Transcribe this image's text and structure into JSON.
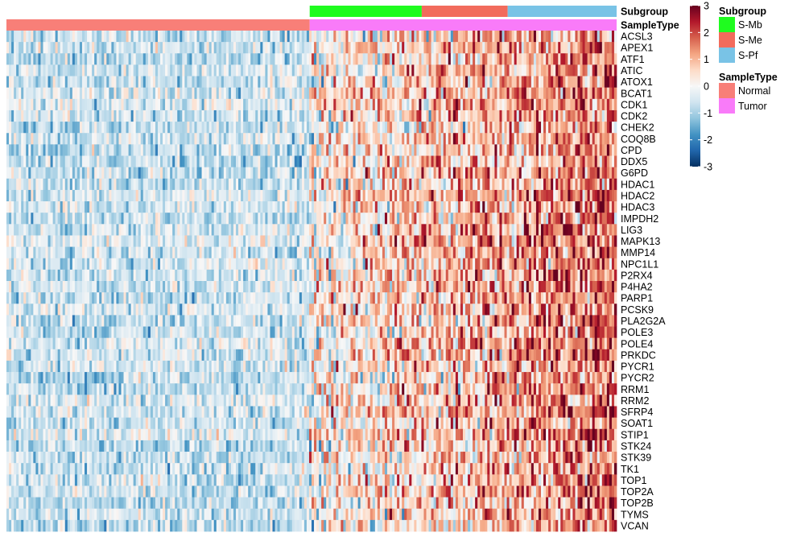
{
  "chart_data": {
    "type": "heatmap",
    "title": "",
    "rows": [
      "ACSL3",
      "APEX1",
      "ATF1",
      "ATIC",
      "ATOX1",
      "BCAT1",
      "CDK1",
      "CDK2",
      "CHEK2",
      "COQ8B",
      "CPD",
      "DDX5",
      "G6PD",
      "HDAC1",
      "HDAC2",
      "HDAC3",
      "IMPDH2",
      "LIG3",
      "MAPK13",
      "MMP14",
      "NPC1L1",
      "P2RX4",
      "P4HA2",
      "PARP1",
      "PCSK9",
      "PLA2G2A",
      "POLE3",
      "POLE4",
      "PRKDC",
      "PYCR1",
      "PYCR2",
      "RRM1",
      "RRM2",
      "SFRP4",
      "SOAT1",
      "STIP1",
      "STK24",
      "STK39",
      "TK1",
      "TOP1",
      "TOP2A",
      "TOP2B",
      "TYMS",
      "VCAN"
    ],
    "annotations": [
      {
        "name": "Subgroup",
        "segments": [
          {
            "level": "S-Mb",
            "fraction": 0.365
          },
          {
            "level": "S-Me",
            "fraction": 0.28
          },
          {
            "level": "S-Pf",
            "fraction": 0.355
          }
        ],
        "span_fraction_of_columns": 0.503
      },
      {
        "name": "SampleType",
        "segments": [
          {
            "level": "Normal",
            "fraction": 0.497
          },
          {
            "level": "Tumor",
            "fraction": 0.503
          }
        ]
      }
    ],
    "color_scale": {
      "title": "",
      "min": -3,
      "max": 3,
      "ticks": [
        3,
        2,
        1,
        0,
        -1,
        -2,
        -3
      ],
      "colors": [
        "#053061",
        "#2166ac",
        "#4393c3",
        "#92c5de",
        "#d1e5f0",
        "#f7f7f7",
        "#fddbc7",
        "#f4a582",
        "#d6604d",
        "#b2182b",
        "#67001f"
      ]
    },
    "legend_groups": [
      {
        "title": "Subgroup",
        "items": [
          {
            "label": "S-Mb",
            "color": "#1ffc1f"
          },
          {
            "label": "S-Me",
            "color": "#f26b5c"
          },
          {
            "label": "S-Pf",
            "color": "#79c3e6"
          }
        ]
      },
      {
        "title": "SampleType",
        "items": [
          {
            "label": "Normal",
            "color": "#f87f78"
          },
          {
            "label": "Tumor",
            "color": "#f97bf9"
          }
        ]
      }
    ],
    "column_count": 250,
    "normal_mean": -0.6,
    "tumor_ramp": [
      0.2,
      1.6
    ],
    "legend_placement": "right"
  }
}
